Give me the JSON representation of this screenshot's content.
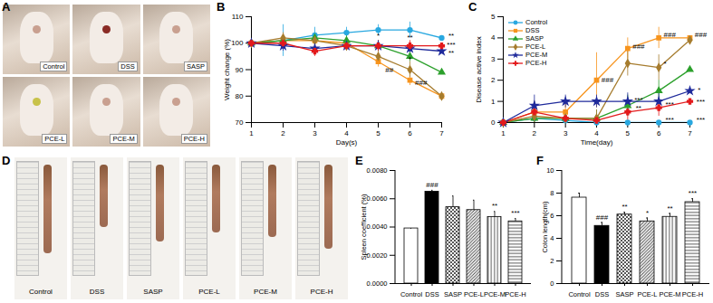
{
  "photos": [
    {
      "title": "A",
      "captions": [
        "Control",
        "DSS",
        "SASP",
        "PCE-L",
        "PCE-M",
        "PCE-H"
      ]
    },
    {
      "title": "D",
      "captions": [
        "Control",
        "DSS",
        "SASP",
        "PCE-L",
        "PCE-M",
        "PCE-H"
      ]
    }
  ],
  "chart_data": [
    {
      "type": "line",
      "title": "B",
      "x_label": "Day(s)",
      "y_label": "Weight change (%)",
      "x": [
        1,
        2,
        3,
        4,
        5,
        6,
        7
      ],
      "xlim": [
        1,
        7
      ],
      "xticks": [
        1,
        2,
        3,
        4,
        5,
        6,
        7
      ],
      "ylim": [
        70,
        110
      ],
      "yticks": [
        70,
        80,
        90,
        100,
        110
      ],
      "series": [
        {
          "name": "Control",
          "color": "#29a8e0",
          "marker": "circle",
          "values": [
            100,
            101,
            103,
            104,
            105,
            105,
            102
          ],
          "errors": [
            0,
            6,
            3,
            2,
            2,
            3,
            2
          ]
        },
        {
          "name": "DSS",
          "color": "#f7941d",
          "marker": "square",
          "values": [
            100,
            101,
            101,
            100,
            93,
            86,
            80
          ],
          "errors": [
            0,
            2,
            2,
            2,
            2,
            2,
            1
          ]
        },
        {
          "name": "SASP",
          "color": "#2ca02c",
          "marker": "triangle",
          "values": [
            100,
            101,
            102,
            101,
            99,
            95,
            89
          ],
          "errors": [
            0,
            2,
            2,
            2,
            2,
            2,
            2
          ]
        },
        {
          "name": "PCE-L",
          "color": "#a67c2e",
          "marker": "diamond",
          "values": [
            100,
            102,
            101,
            99,
            95,
            90,
            80
          ],
          "errors": [
            0,
            2,
            2,
            2,
            2,
            3,
            2
          ]
        },
        {
          "name": "PCE-M",
          "color": "#1f2a9b",
          "marker": "star",
          "values": [
            100,
            99,
            98,
            99,
            99,
            98,
            97
          ],
          "errors": [
            0,
            2,
            2,
            1,
            2,
            2,
            2
          ]
        },
        {
          "name": "PCE-H",
          "color": "#e31a1c",
          "marker": "cross",
          "values": [
            100,
            100,
            97,
            99,
            99,
            99,
            99
          ],
          "errors": [
            0,
            2,
            2,
            1,
            2,
            2,
            2
          ]
        }
      ],
      "annotations": [
        {
          "x": 5,
          "y": 103,
          "text": "*"
        },
        {
          "x": 5.35,
          "y": 90,
          "text": "##"
        },
        {
          "x": 6,
          "y": 102,
          "text": "**"
        },
        {
          "x": 6,
          "y": 94,
          "text": "*"
        },
        {
          "x": 6.35,
          "y": 85,
          "text": "###"
        },
        {
          "x": 7.3,
          "y": 103,
          "text": "**"
        },
        {
          "x": 7.3,
          "y": 99.5,
          "text": "***"
        },
        {
          "x": 7.3,
          "y": 96.5,
          "text": "**"
        }
      ]
    },
    {
      "type": "line",
      "title": "C",
      "x_label": "Time(day)",
      "y_label": "Disease active index",
      "x": [
        1,
        2,
        3,
        4,
        5,
        6,
        7
      ],
      "xlim": [
        1,
        7
      ],
      "xticks": [
        1,
        2,
        3,
        4,
        5,
        6,
        7
      ],
      "ylim": [
        0,
        5
      ],
      "yticks": [
        0,
        1,
        2,
        3,
        4,
        5
      ],
      "legend": "top-left",
      "series": [
        {
          "name": "Control",
          "color": "#29a8e0",
          "marker": "circle",
          "values": [
            0,
            0.2,
            0.1,
            0,
            0,
            0,
            0
          ],
          "errors": [
            0,
            0.8,
            0.5,
            0,
            0,
            0,
            0
          ]
        },
        {
          "name": "DSS",
          "color": "#f7941d",
          "marker": "square",
          "values": [
            0,
            0.5,
            0.5,
            2,
            3.5,
            4,
            4
          ],
          "errors": [
            0,
            0.5,
            0.5,
            1.3,
            0.5,
            0.5,
            0.4
          ]
        },
        {
          "name": "SASP",
          "color": "#2ca02c",
          "marker": "triangle",
          "values": [
            0,
            0.2,
            0.2,
            0.2,
            0.8,
            1.5,
            2.5
          ],
          "errors": [
            0,
            0.4,
            0.4,
            0.4,
            0.5,
            0.5,
            0.6
          ]
        },
        {
          "name": "PCE-L",
          "color": "#a67c2e",
          "marker": "diamond",
          "values": [
            0,
            0.3,
            0.2,
            0.2,
            2.8,
            2.6,
            3.9
          ],
          "errors": [
            0,
            0.5,
            0.4,
            0.4,
            0.6,
            0.6,
            0.5
          ]
        },
        {
          "name": "PCE-M",
          "color": "#1f2a9b",
          "marker": "star",
          "values": [
            0,
            0.8,
            1,
            1,
            1,
            1,
            1.5
          ],
          "errors": [
            0,
            0.5,
            0.3,
            0.3,
            0.4,
            0.4,
            0.5
          ]
        },
        {
          "name": "PCE-H",
          "color": "#e31a1c",
          "marker": "cross",
          "values": [
            0,
            0.5,
            0.2,
            0.1,
            0.5,
            0.7,
            1
          ],
          "errors": [
            0,
            0.4,
            0.3,
            0.3,
            0.4,
            0.4,
            0.5
          ]
        }
      ],
      "annotations": [
        {
          "x": 4.35,
          "y": 2,
          "text": "###"
        },
        {
          "x": 5.35,
          "y": 3.6,
          "text": "###"
        },
        {
          "x": 6.35,
          "y": 4.15,
          "text": "###"
        },
        {
          "x": 7.35,
          "y": 4.15,
          "text": "###"
        },
        {
          "x": 6.2,
          "y": 2.8,
          "text": "*"
        },
        {
          "x": 5.35,
          "y": 1.05,
          "text": "***"
        },
        {
          "x": 5.35,
          "y": 0.7,
          "text": "**"
        },
        {
          "x": 6.35,
          "y": 0.85,
          "text": "***"
        },
        {
          "x": 6.35,
          "y": 0.15,
          "text": "***"
        },
        {
          "x": 7.3,
          "y": 1.55,
          "text": "*"
        },
        {
          "x": 7.35,
          "y": 1.0,
          "text": "***"
        },
        {
          "x": 7.35,
          "y": 0.15,
          "text": "***"
        }
      ]
    },
    {
      "type": "bar",
      "title": "E",
      "y_label": "Spleen coefficient (%)",
      "categories": [
        "Control",
        "DSS",
        "SASP",
        "PCE-L",
        "PCE-M",
        "PCE-H"
      ],
      "values": [
        0.0039,
        0.0065,
        0.0054,
        0.0052,
        0.0047,
        0.0044
      ],
      "errors": [
        0,
        0.0001,
        0.0008,
        0.0007,
        0.0004,
        0.0002
      ],
      "colors": [
        "#ffffff",
        "#000000",
        "#444444",
        "#444444",
        "#444444",
        "#444444"
      ],
      "ylim": [
        0,
        0.008
      ],
      "yticks": [
        {
          "value": 0,
          "label": "0.0000"
        },
        {
          "value": 0.002,
          "label": "0.0020"
        },
        {
          "value": 0.004,
          "label": "0.0040"
        },
        {
          "value": 0.006,
          "label": "0.0060"
        },
        {
          "value": 0.008,
          "label": "0.0080"
        }
      ],
      "annotations": [
        {
          "category": "DSS",
          "text": "###"
        },
        {
          "category": "PCE-M",
          "text": "**"
        },
        {
          "category": "PCE-H",
          "text": "***"
        }
      ]
    },
    {
      "type": "bar",
      "title": "F",
      "y_label": "Colon length(cm)",
      "categories": [
        "Control",
        "DSS",
        "SASP",
        "PCE-L",
        "PCE-M",
        "PCE-H"
      ],
      "values": [
        7.6,
        5.1,
        6.1,
        5.5,
        5.9,
        7.2
      ],
      "errors": [
        0.4,
        0.3,
        0.2,
        0.3,
        0.3,
        0.3
      ],
      "colors": [
        "#ffffff",
        "#000000",
        "#444444",
        "#444444",
        "#444444",
        "#444444"
      ],
      "ylim": [
        0,
        10
      ],
      "yticks": [
        0,
        2,
        4,
        6,
        8,
        10
      ],
      "annotations": [
        {
          "category": "DSS",
          "text": "###"
        },
        {
          "category": "SASP",
          "text": "**"
        },
        {
          "category": "PCE-L",
          "text": "*"
        },
        {
          "category": "PCE-M",
          "text": "**"
        },
        {
          "category": "PCE-H",
          "text": "***"
        }
      ]
    }
  ]
}
